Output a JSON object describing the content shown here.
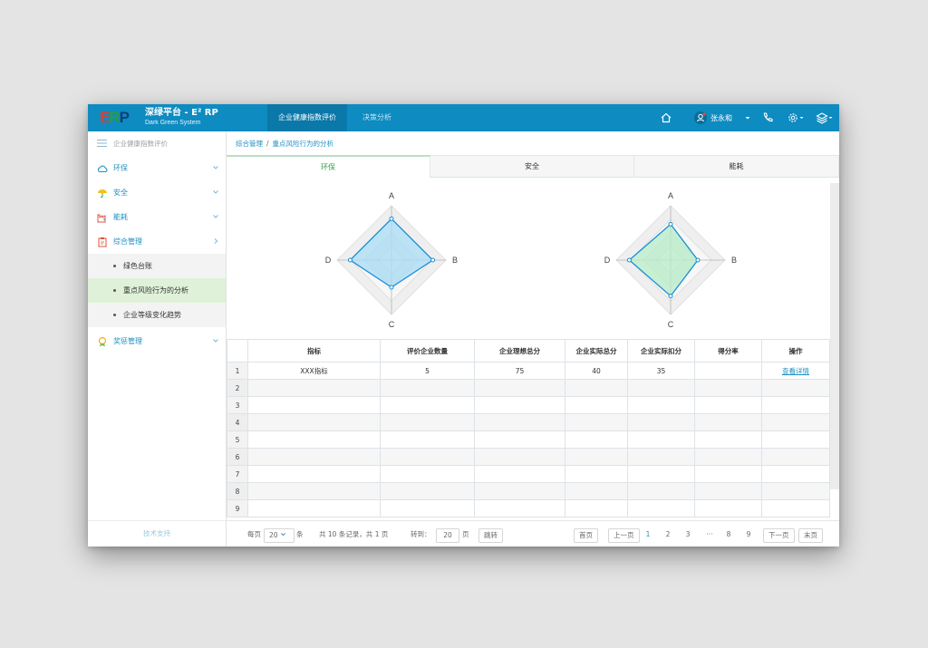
{
  "app": {
    "logo": "ERP",
    "title": "深绿平台 - E² RP",
    "subtitle": "Dark Green System"
  },
  "topnav": {
    "tabs": [
      {
        "label": "企业健康指数评价",
        "active": true
      },
      {
        "label": "决策分析",
        "active": false
      }
    ],
    "user_name": "张永和",
    "icons": [
      "home-icon",
      "user-icon",
      "phone-icon",
      "gear-icon",
      "layers-icon"
    ]
  },
  "sidebar": {
    "header": "企业健康指数评价",
    "items": [
      {
        "label": "环保",
        "icon": "cloud-icon"
      },
      {
        "label": "安全",
        "icon": "umbrella-icon"
      },
      {
        "label": "能耗",
        "icon": "factory-icon"
      },
      {
        "label": "综合管理",
        "icon": "clipboard-icon"
      },
      {
        "label": "奖惩管理",
        "icon": "medal-icon"
      }
    ],
    "subitems": [
      {
        "label": "绿色台账",
        "active": false
      },
      {
        "label": "重点风险行为的分析",
        "active": true
      },
      {
        "label": "企业等级变化趋势",
        "active": false
      }
    ],
    "footer": "技术支持"
  },
  "breadcrumb": {
    "parent": "综合管理",
    "separator": "/",
    "current": "重点风险行为的分析"
  },
  "tabs": [
    {
      "label": "环保",
      "active": true
    },
    {
      "label": "安全",
      "active": false
    },
    {
      "label": "能耗",
      "active": false
    }
  ],
  "chart_data": [
    {
      "type": "radar",
      "axes": [
        "A",
        "B",
        "C",
        "D"
      ],
      "grid_levels": 4,
      "series_color": "#1a8fd6",
      "fill_color": "#a8dcf4",
      "values": [
        0.76,
        0.76,
        0.5,
        0.76
      ]
    },
    {
      "type": "radar",
      "axes": [
        "A",
        "B",
        "C",
        "D"
      ],
      "grid_levels": 4,
      "series_color": "#1a8fd6",
      "fill_color": "#b7ecc8",
      "values": [
        0.66,
        0.5,
        0.66,
        0.76
      ]
    }
  ],
  "table": {
    "columns": [
      "指标",
      "评价企业数量",
      "企业理想总分",
      "企业实际总分",
      "企业实际扣分",
      "得分率",
      "操作"
    ],
    "rows": [
      {
        "num": "1",
        "cells": [
          "XXX指标",
          "5",
          "75",
          "40",
          "35",
          "",
          "查看详情"
        ]
      },
      {
        "num": "2",
        "cells": [
          "",
          "",
          "",
          "",
          "",
          "",
          ""
        ]
      },
      {
        "num": "3",
        "cells": [
          "",
          "",
          "",
          "",
          "",
          "",
          ""
        ]
      },
      {
        "num": "4",
        "cells": [
          "",
          "",
          "",
          "",
          "",
          "",
          ""
        ]
      },
      {
        "num": "5",
        "cells": [
          "",
          "",
          "",
          "",
          "",
          "",
          ""
        ]
      },
      {
        "num": "6",
        "cells": [
          "",
          "",
          "",
          "",
          "",
          "",
          ""
        ]
      },
      {
        "num": "7",
        "cells": [
          "",
          "",
          "",
          "",
          "",
          "",
          ""
        ]
      },
      {
        "num": "8",
        "cells": [
          "",
          "",
          "",
          "",
          "",
          "",
          ""
        ]
      },
      {
        "num": "9",
        "cells": [
          "",
          "",
          "",
          "",
          "",
          "",
          ""
        ]
      }
    ]
  },
  "pager": {
    "per_page_label": "每页",
    "per_page_value": "20",
    "per_page_unit": "条",
    "summary": "共 10 条记录，共 1 页",
    "goto_label": "转到：",
    "goto_value": "20",
    "goto_unit": "页",
    "goto_button": "跳转",
    "first": "首页",
    "prev": "上一页",
    "pages": [
      "1",
      "2",
      "3",
      "···",
      "8",
      "9"
    ],
    "current_page": "1",
    "next": "下一页",
    "last": "末页"
  }
}
